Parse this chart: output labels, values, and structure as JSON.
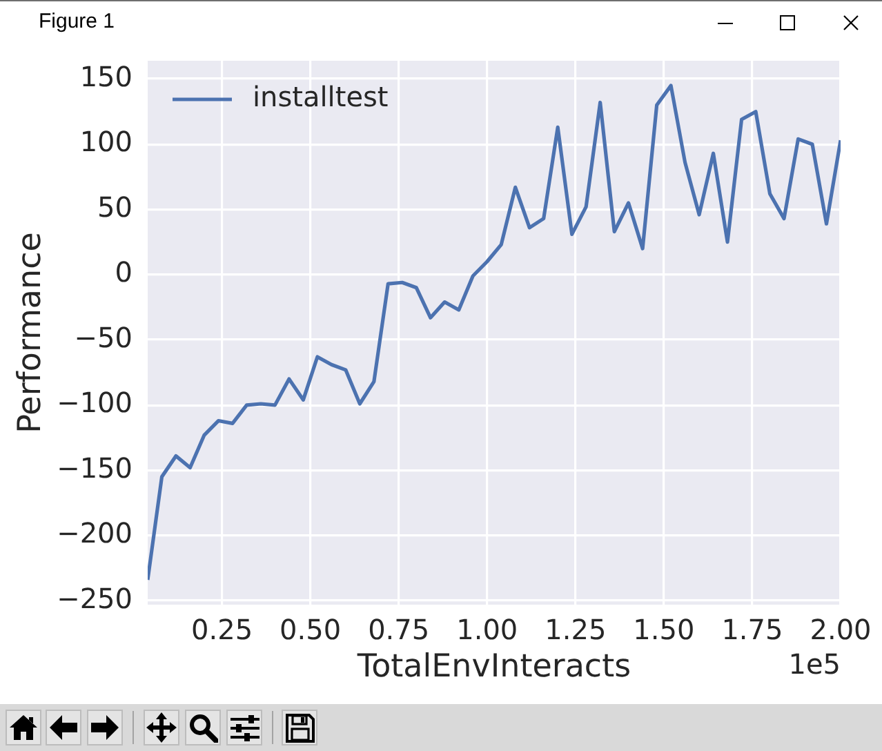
{
  "chart_data": {
    "type": "line",
    "title": "Figure 1",
    "xlabel": "TotalEnvInteracts",
    "ylabel": "Performance",
    "annotations": [
      "1e5"
    ],
    "x": [
      0.04,
      0.08,
      0.12,
      0.16,
      0.2,
      0.24,
      0.28,
      0.32,
      0.36,
      0.4,
      0.44,
      0.48,
      0.52,
      0.56,
      0.6,
      0.64,
      0.68,
      0.72,
      0.76,
      0.8,
      0.84,
      0.88,
      0.92,
      0.96,
      1.0,
      1.04,
      1.08,
      1.12,
      1.16,
      1.2,
      1.24,
      1.28,
      1.32,
      1.36,
      1.4,
      1.44,
      1.48,
      1.52,
      1.56,
      1.6,
      1.64,
      1.68,
      1.72,
      1.76,
      1.8,
      1.84,
      1.88,
      1.92,
      1.96,
      2.0
    ],
    "series": [
      {
        "name": "installtest",
        "color": "#4c72b0",
        "values": [
          -234,
          -155,
          -139,
          -148,
          -123,
          -112,
          -114,
          -100,
          -99,
          -100,
          -80,
          -96,
          -63,
          -69,
          -73,
          -99,
          -82,
          -7,
          -6,
          -10,
          -33,
          -21,
          -27,
          -1,
          10,
          23,
          67,
          36,
          43,
          113,
          31,
          52,
          132,
          33,
          55,
          20,
          130,
          145,
          86,
          46,
          93,
          25,
          119,
          125,
          62,
          43,
          104,
          100,
          39,
          103
        ]
      }
    ],
    "xlim": [
      0.04,
      2.0
    ],
    "xticks": [
      0.25,
      {
        "value": 0.5,
        "label": "0.50"
      },
      0.75,
      {
        "value": 1.0,
        "label": "1.00"
      },
      1.25,
      {
        "value": 1.5,
        "label": "1.50"
      },
      1.75,
      {
        "value": 2.0,
        "label": "2.00"
      }
    ],
    "ylim": [
      -253,
      164
    ],
    "yticks": [
      {
        "value": -250,
        "label": "−250"
      },
      {
        "value": -200,
        "label": "−200"
      },
      {
        "value": -150,
        "label": "−150"
      },
      {
        "value": -100,
        "label": "−100"
      },
      {
        "value": -50,
        "label": "−50"
      },
      0,
      50,
      100,
      150
    ],
    "grid": true,
    "legend": "top left",
    "marker": "none",
    "line_style": "solid"
  }
}
